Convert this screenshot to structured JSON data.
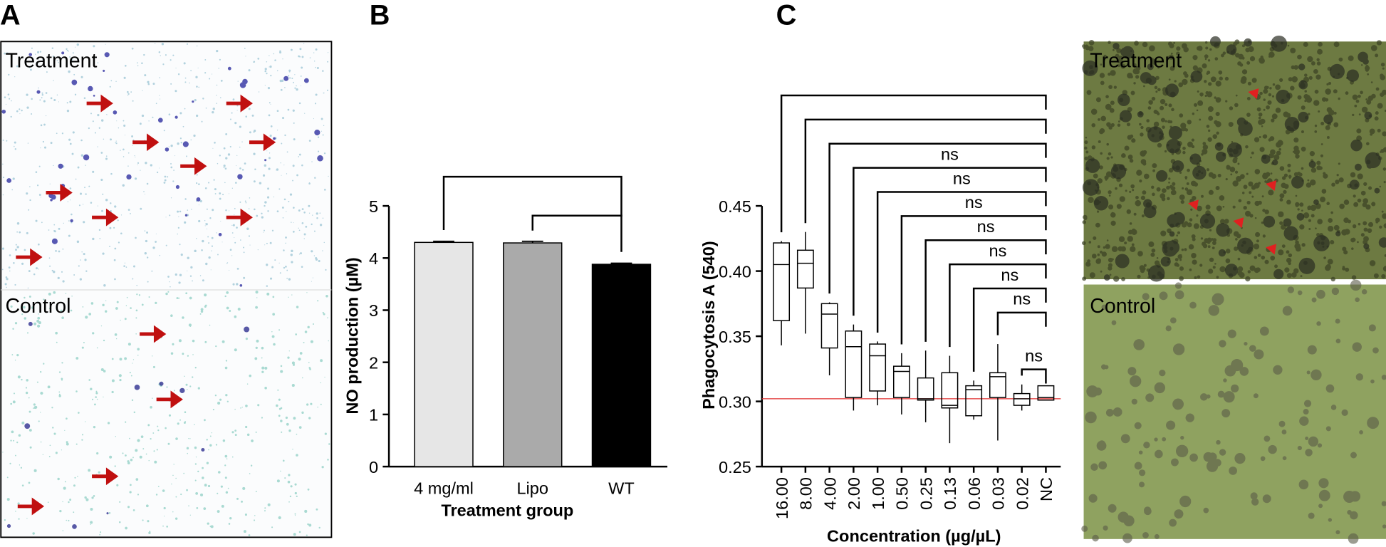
{
  "panel_labels": [
    "A",
    "B",
    "C"
  ],
  "micrographs_A": {
    "labels": [
      "Treatment",
      "Control"
    ]
  },
  "micrographs_C": {
    "labels": [
      "Treatment",
      "Control"
    ]
  },
  "chart_data": [
    {
      "type": "bar",
      "ylabel": "NO production (µM)",
      "xlabel": "Treatment group",
      "categories": [
        "4 mg/ml",
        "Lipo",
        "WT"
      ],
      "values": [
        4.3,
        4.29,
        3.88
      ],
      "errors": [
        0.02,
        0.03,
        0.02
      ],
      "colors": [
        "#e6e6e6",
        "#aaaaaa",
        "#000000"
      ],
      "ylim": [
        0,
        5
      ],
      "yticks": [
        0,
        1,
        2,
        3,
        4,
        5
      ],
      "brackets": [
        {
          "from": 0,
          "to": 2
        },
        {
          "from": 1,
          "to": 2
        }
      ]
    },
    {
      "type": "box",
      "ylabel": "Phagocytosis A (540)",
      "xlabel": "Concentration (µg/µL)",
      "categories": [
        "16.00",
        "8.00",
        "4.00",
        "2.00",
        "1.00",
        "0.50",
        "0.25",
        "0.13",
        "0.06",
        "0.03",
        "0.02",
        "NC"
      ],
      "min": [
        0.343,
        0.352,
        0.32,
        0.293,
        0.297,
        0.29,
        0.284,
        0.268,
        0.286,
        0.27,
        0.293,
        0.301
      ],
      "q1": [
        0.362,
        0.387,
        0.341,
        0.303,
        0.308,
        0.303,
        0.301,
        0.295,
        0.289,
        0.303,
        0.297,
        0.301
      ],
      "median": [
        0.405,
        0.406,
        0.367,
        0.342,
        0.335,
        0.323,
        0.302,
        0.297,
        0.309,
        0.319,
        0.302,
        0.303
      ],
      "q3": [
        0.4216,
        0.416,
        0.375,
        0.354,
        0.344,
        0.327,
        0.318,
        0.322,
        0.312,
        0.322,
        0.306,
        0.312
      ],
      "max": [
        0.423,
        0.43,
        0.376,
        0.359,
        0.346,
        0.337,
        0.339,
        0.335,
        0.316,
        0.344,
        0.313,
        0.312
      ],
      "reference_line": 0.302,
      "reference_color": "#e03030",
      "ylim": [
        0.25,
        0.45
      ],
      "yticks": [
        0.25,
        {
          "value": 0.3,
          "label": "0.30"
        },
        0.35,
        {
          "value": 0.4,
          "label": "0.40"
        },
        0.45
      ],
      "brackets": [
        {
          "from": 0
        },
        {
          "from": 1
        },
        {
          "from": 2
        },
        {
          "from": 3,
          "label": "ns"
        },
        {
          "from": 4,
          "label": "ns"
        },
        {
          "from": 5,
          "label": "ns"
        },
        {
          "from": 6,
          "label": "ns"
        },
        {
          "from": 7,
          "label": "ns"
        },
        {
          "from": 8,
          "label": "ns"
        },
        {
          "from": 9,
          "label": "ns"
        },
        {
          "from": 10,
          "label": "ns"
        }
      ]
    }
  ]
}
